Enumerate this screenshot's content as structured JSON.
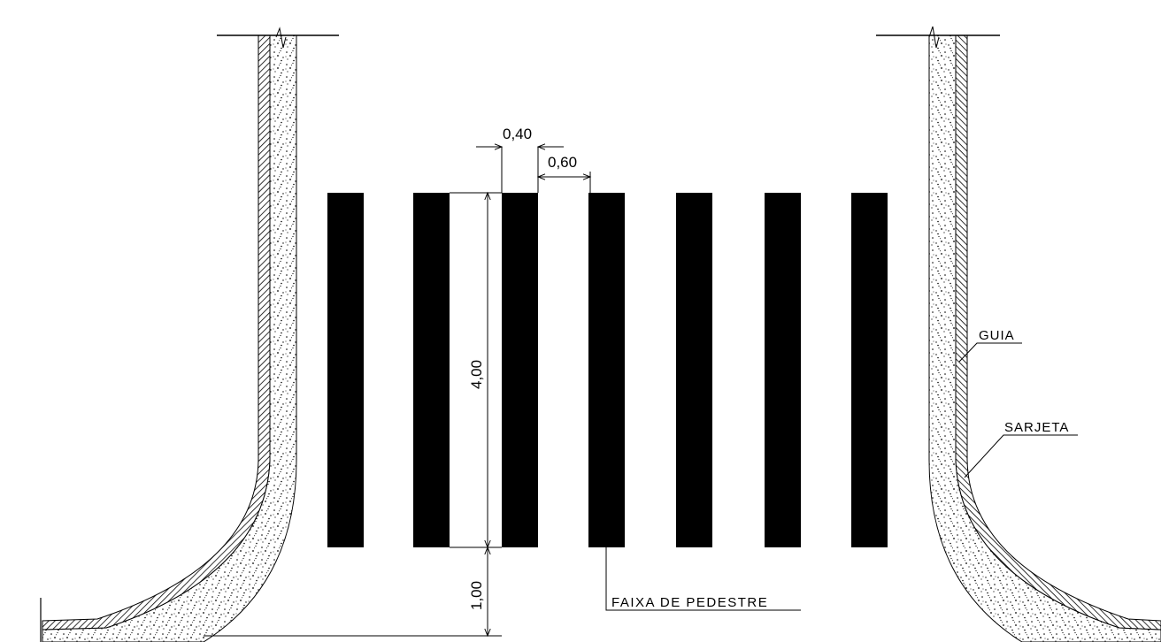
{
  "dimensions": {
    "stripe_width": "0,40",
    "stripe_gap": "0,60",
    "stripe_length": "4,00",
    "setback": "1,00"
  },
  "labels": {
    "curb": "GUIA",
    "gutter": "SARJETA",
    "crosswalk": "FAIXA DE PEDESTRE"
  },
  "stripe_count": 7,
  "colors": {
    "ink": "#000000",
    "paper": "#ffffff"
  }
}
